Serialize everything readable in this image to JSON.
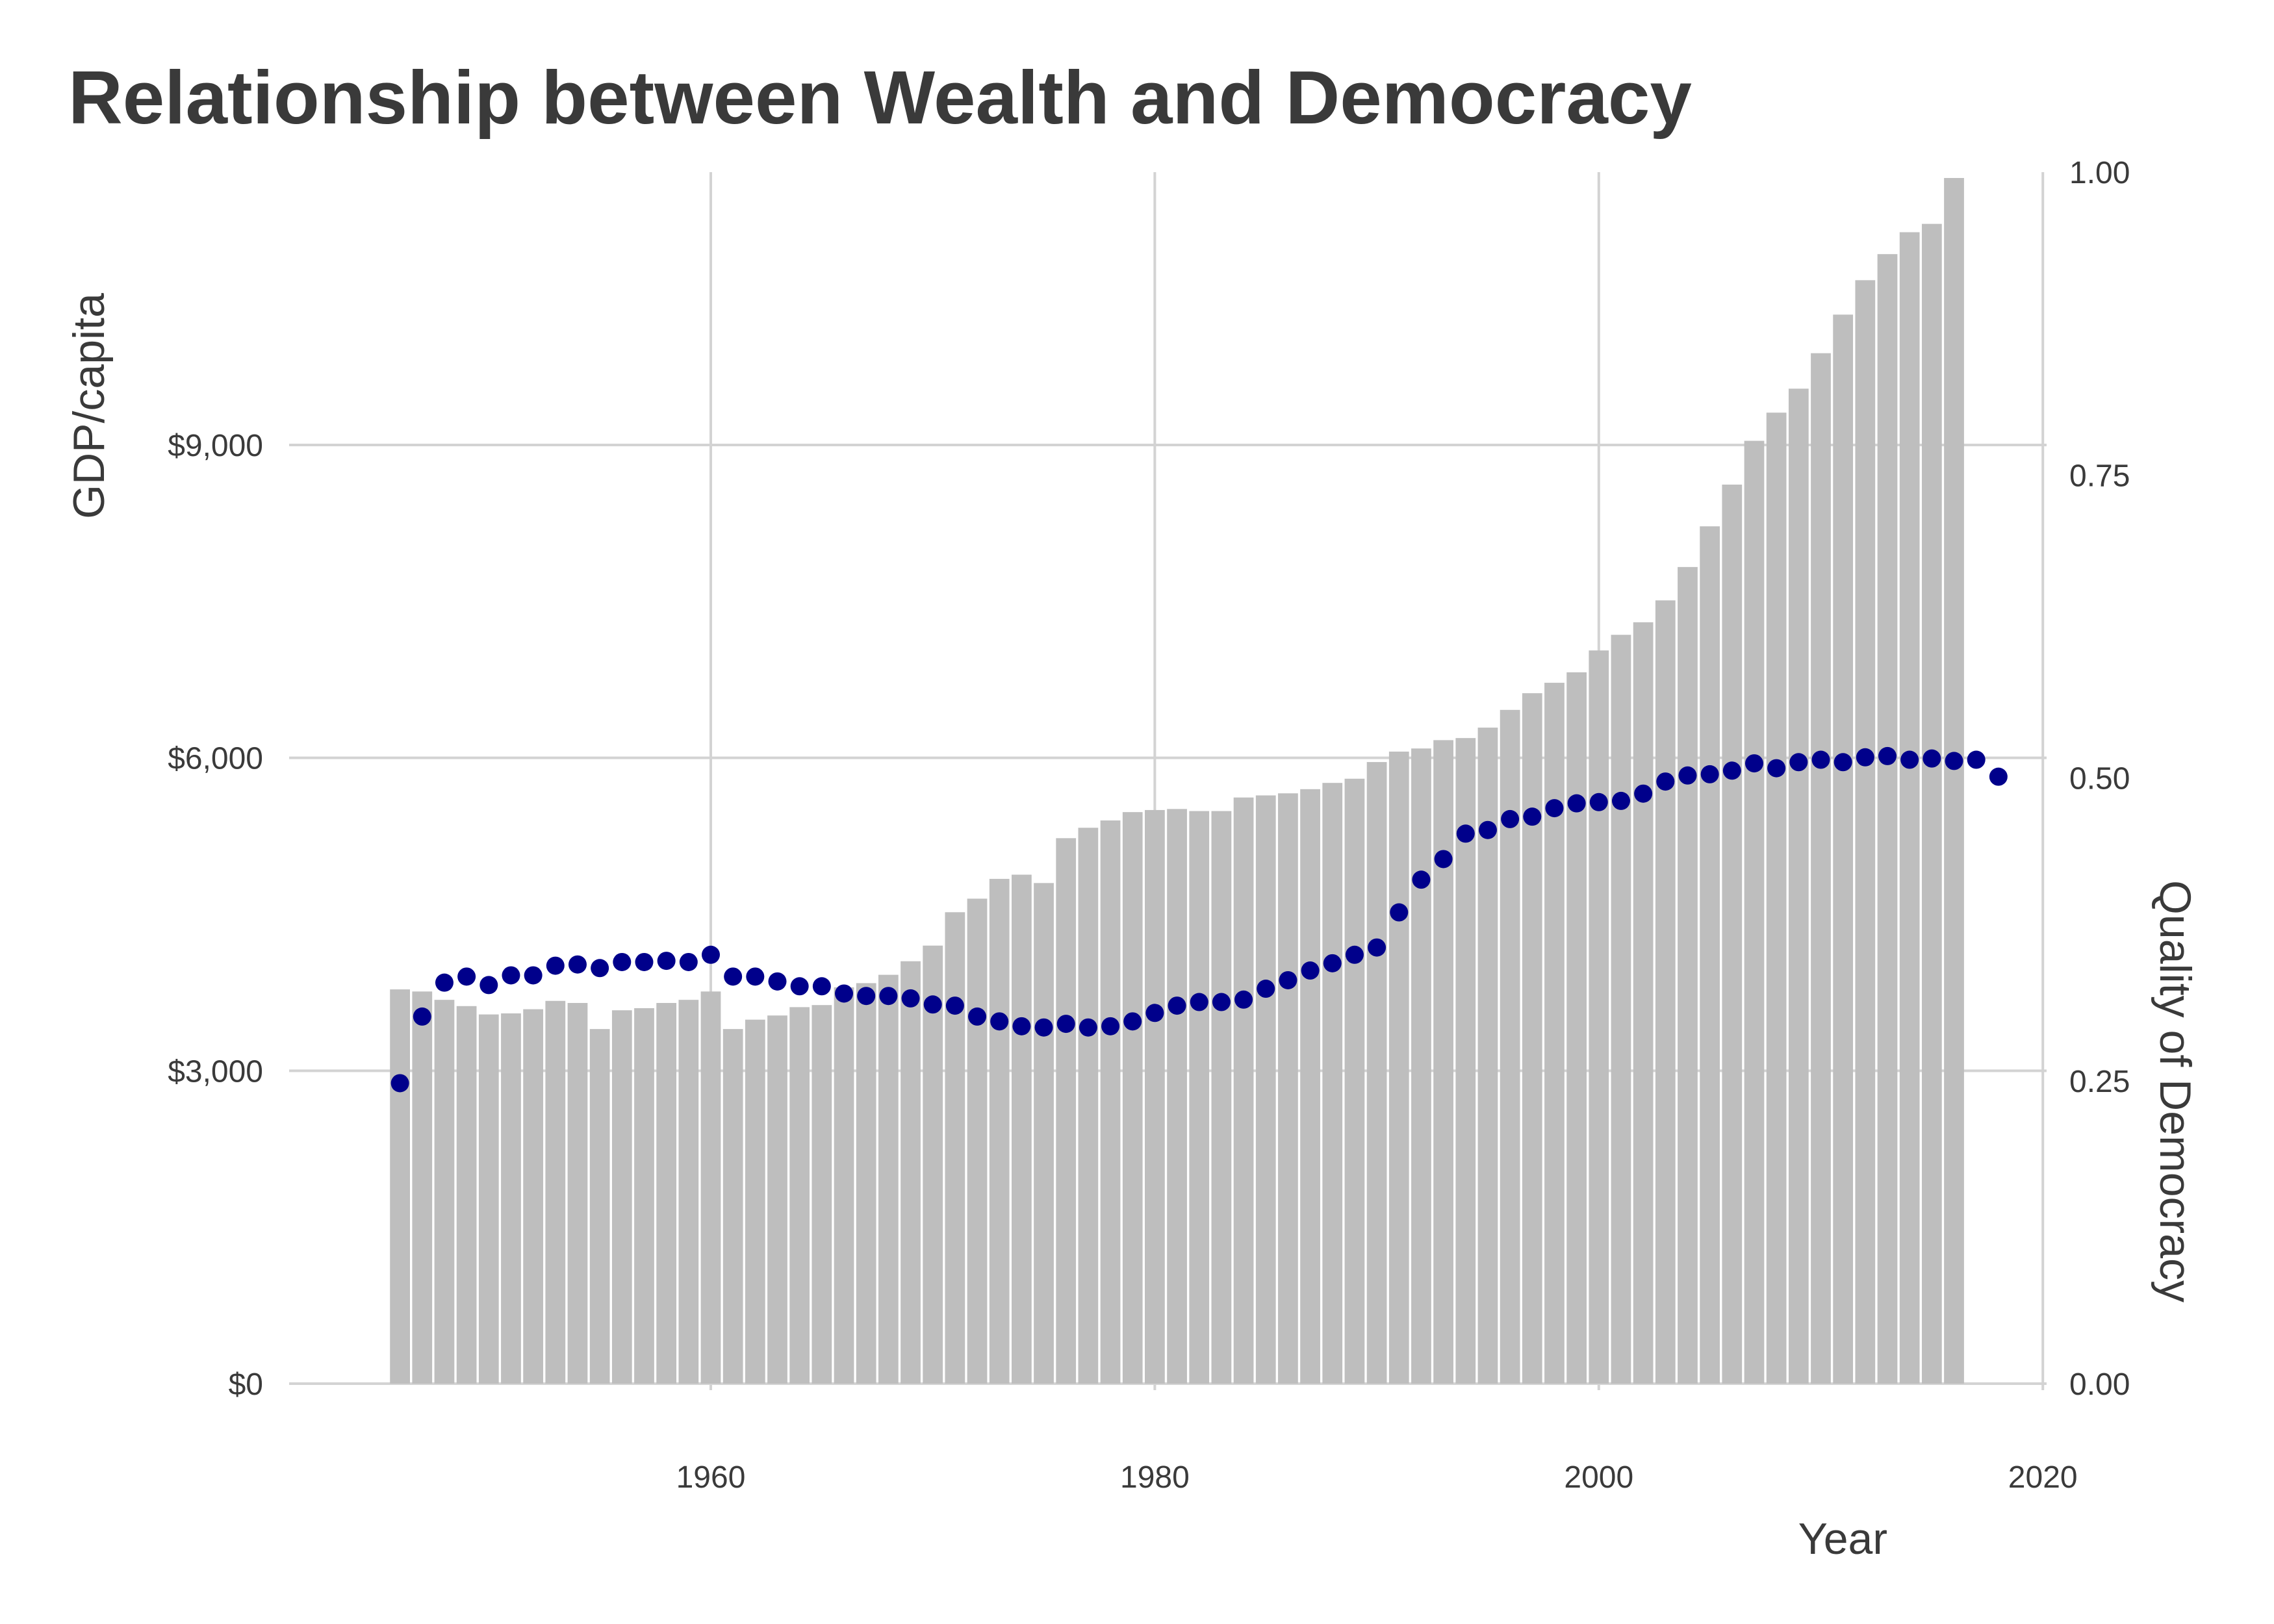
{
  "chart_data": {
    "type": "bar",
    "title": "Relationship between Wealth and Democracy",
    "xlabel": "Year",
    "ylabel": "GDP/capita",
    "y2label": "Quality of Democracy",
    "xlim": [
      1941.5,
      2020
    ],
    "ylim": [
      0,
      11600
    ],
    "y2lim": [
      0,
      1
    ],
    "x_ticks": [
      1960,
      1980,
      2000,
      2020
    ],
    "y_ticks": [
      0,
      3000,
      6000,
      9000
    ],
    "y_tick_labels": [
      "$0",
      "$3,000",
      "$6,000",
      "$9,000"
    ],
    "y2_ticks": [
      0,
      0.25,
      0.5,
      0.75,
      1
    ],
    "y2_tick_labels": [
      "0.00",
      "0.25",
      "0.50",
      "0.75",
      "1.00"
    ],
    "grid": true,
    "colors": {
      "bars": "#bebebe",
      "points": "#00008b",
      "grid": "#d3d3d3",
      "text": "#3a3a3a"
    },
    "series": [
      {
        "kind": "bar",
        "axis": "left",
        "x": [
          1946,
          1947,
          1948,
          1949,
          1950,
          1951,
          1952,
          1953,
          1954,
          1955,
          1956,
          1957,
          1958,
          1959,
          1960,
          1961,
          1962,
          1963,
          1964,
          1965,
          1966,
          1967,
          1968,
          1969,
          1970,
          1971,
          1972,
          1973,
          1974,
          1975,
          1976,
          1977,
          1978,
          1979,
          1980,
          1981,
          1982,
          1983,
          1984,
          1985,
          1986,
          1987,
          1988,
          1989,
          1990,
          1991,
          1992,
          1993,
          1994,
          1995,
          1996,
          1997,
          1998,
          1999,
          2000,
          2001,
          2002,
          2003,
          2004,
          2005,
          2006,
          2007,
          2008,
          2009,
          2010,
          2011,
          2012,
          2013,
          2014,
          2015,
          2016
        ],
        "values": [
          3780,
          3760,
          3680,
          3620,
          3540,
          3550,
          3590,
          3670,
          3650,
          3400,
          3580,
          3600,
          3650,
          3680,
          3760,
          3400,
          3490,
          3530,
          3610,
          3630,
          3800,
          3840,
          3920,
          4050,
          4200,
          4520,
          4650,
          4840,
          4880,
          4800,
          5230,
          5330,
          5400,
          5480,
          5500,
          5510,
          5490,
          5490,
          5620,
          5640,
          5660,
          5700,
          5760,
          5800,
          5960,
          6060,
          6090,
          6170,
          6190,
          6290,
          6460,
          6620,
          6720,
          6820,
          7030,
          7180,
          7300,
          7510,
          7830,
          8220,
          8620,
          9040,
          9310,
          9540,
          9880,
          10250,
          10580,
          10830,
          11040,
          11120,
          11560
        ]
      },
      {
        "kind": "scatter",
        "axis": "right",
        "x": [
          1946,
          1947,
          1948,
          1949,
          1950,
          1951,
          1952,
          1953,
          1954,
          1955,
          1956,
          1957,
          1958,
          1959,
          1960,
          1961,
          1962,
          1963,
          1964,
          1965,
          1966,
          1967,
          1968,
          1969,
          1970,
          1971,
          1972,
          1973,
          1974,
          1975,
          1976,
          1977,
          1978,
          1979,
          1980,
          1981,
          1982,
          1983,
          1984,
          1985,
          1986,
          1987,
          1988,
          1989,
          1990,
          1991,
          1992,
          1993,
          1994,
          1995,
          1996,
          1997,
          1998,
          1999,
          2000,
          2001,
          2002,
          2003,
          2004,
          2005,
          2006,
          2007,
          2008,
          2009,
          2010,
          2011,
          2012,
          2013,
          2014,
          2015,
          2016,
          2017,
          2018
        ],
        "values": [
          0.248,
          0.303,
          0.331,
          0.336,
          0.329,
          0.337,
          0.337,
          0.345,
          0.346,
          0.343,
          0.348,
          0.348,
          0.349,
          0.348,
          0.354,
          0.336,
          0.336,
          0.332,
          0.328,
          0.328,
          0.322,
          0.32,
          0.32,
          0.318,
          0.313,
          0.312,
          0.303,
          0.299,
          0.295,
          0.294,
          0.297,
          0.294,
          0.295,
          0.299,
          0.306,
          0.312,
          0.315,
          0.315,
          0.317,
          0.326,
          0.333,
          0.341,
          0.347,
          0.354,
          0.36,
          0.389,
          0.416,
          0.433,
          0.454,
          0.457,
          0.466,
          0.468,
          0.475,
          0.479,
          0.48,
          0.481,
          0.487,
          0.497,
          0.502,
          0.503,
          0.506,
          0.512,
          0.508,
          0.513,
          0.515,
          0.513,
          0.517,
          0.518,
          0.515,
          0.516,
          0.514,
          0.515,
          0.501
        ]
      }
    ]
  }
}
